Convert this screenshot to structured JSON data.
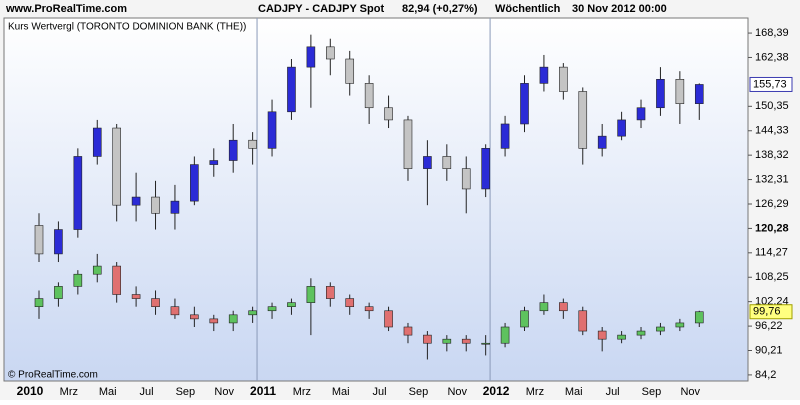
{
  "header": {
    "site": "www.ProRealTime.com",
    "instrument": "CADJPY - CADJPY Spot",
    "quote": "82,94 (+0,27%)",
    "period": "Wöchentlich",
    "date": "30 Nov 2012 00:00"
  },
  "chart_data": {
    "type": "candlestick",
    "legend": "Kurs Wertvergl (TORONTO DOMINION BANK (THE))",
    "copyright": "© ProRealTime.com",
    "categories": [
      "2010",
      null,
      "Mrz",
      null,
      "Mai",
      null,
      "Jul",
      null,
      "Sep",
      null,
      "Nov",
      null,
      "2011",
      null,
      "Mrz",
      null,
      "Mai",
      null,
      "Jul",
      null,
      "Sep",
      null,
      "Nov",
      null,
      "2012",
      null,
      "Mrz",
      null,
      "Mai",
      null,
      "Jul",
      null,
      "Sep",
      null,
      "Nov"
    ],
    "series": [
      {
        "up_color": "#2b2bd6",
        "down_color": "#c4c4c4",
        "open": [
          121,
          114,
          120,
          138,
          145,
          126,
          128,
          124,
          127,
          136,
          137,
          142,
          140,
          149,
          160,
          165,
          162,
          156,
          150,
          147,
          135,
          138,
          135,
          130,
          140,
          146,
          156,
          160,
          154,
          140,
          143,
          147,
          150,
          157,
          151
        ],
        "high": [
          124,
          122,
          140,
          147,
          146,
          134,
          132,
          131,
          138,
          140,
          146,
          144,
          152,
          162,
          168,
          167,
          164,
          158,
          153,
          148,
          142,
          141,
          138,
          141,
          148,
          158,
          163,
          161,
          155,
          146,
          149,
          152,
          160,
          159,
          156
        ],
        "low": [
          112,
          112,
          118,
          136,
          122,
          122,
          120,
          120,
          126,
          133,
          134,
          136,
          138,
          147,
          150,
          158,
          153,
          146,
          145,
          132,
          126,
          132,
          124,
          128,
          138,
          144,
          154,
          152,
          136,
          138,
          142,
          145,
          148,
          146,
          147
        ],
        "close": [
          114,
          120,
          138,
          145,
          126,
          128,
          124,
          127,
          136,
          137,
          142,
          140,
          149,
          160,
          165,
          162,
          156,
          150,
          147,
          135,
          138,
          135,
          130,
          140,
          146,
          156,
          160,
          154,
          140,
          143,
          147,
          150,
          157,
          151,
          155.73
        ],
        "last": {
          "value": 155.73,
          "label": "155,73"
        },
        "last_fill": "#ffffff",
        "last_border": "#3a3ab0"
      },
      {
        "up_color": "#5ec25e",
        "down_color": "#e07070",
        "open": [
          101,
          103,
          106,
          109,
          111,
          104,
          103,
          101,
          99,
          98,
          97,
          99,
          100,
          101,
          102,
          106,
          103,
          101,
          100,
          96,
          94,
          92,
          93,
          92,
          92,
          96,
          100,
          102,
          100,
          95,
          93,
          94,
          95,
          96,
          97
        ],
        "high": [
          105,
          107,
          110,
          114,
          112,
          106,
          105,
          103,
          101,
          99,
          100,
          101,
          102,
          103,
          108,
          107,
          104,
          102,
          101,
          97,
          95,
          94,
          94,
          94,
          97,
          101,
          104,
          103,
          101,
          96,
          95,
          96,
          97,
          98,
          100
        ],
        "low": [
          98,
          101,
          104,
          107,
          102,
          101,
          99,
          98,
          96,
          95,
          95,
          97,
          98,
          99,
          94,
          101,
          99,
          98,
          95,
          92,
          88,
          90,
          90,
          89,
          91,
          95,
          99,
          98,
          94,
          90,
          92,
          93,
          94,
          95,
          96
        ],
        "close": [
          103,
          106,
          109,
          111,
          104,
          103,
          101,
          99,
          98,
          97,
          99,
          100,
          101,
          102,
          106,
          103,
          101,
          100,
          96,
          94,
          92,
          93,
          92,
          92,
          96,
          100,
          102,
          100,
          95,
          93,
          94,
          95,
          96,
          97,
          99.76
        ],
        "last": {
          "value": 99.76,
          "label": "99,76"
        },
        "last_fill": "#ffff80",
        "last_border": "#a0a000"
      }
    ],
    "ylim": [
      82.7,
      172.1
    ],
    "yticks": [
      {
        "value": 84.2,
        "label": "84,2"
      },
      {
        "value": 90.21,
        "label": "90,21"
      },
      {
        "value": 96.22,
        "label": "96,22"
      },
      {
        "value": 102.24,
        "label": "102,24"
      },
      {
        "value": 108.25,
        "label": "108,25"
      },
      {
        "value": 114.27,
        "label": "114,27"
      },
      {
        "value": 120.28,
        "label": "120,28"
      },
      {
        "value": 126.29,
        "label": "126,29"
      },
      {
        "value": 132.31,
        "label": "132,31"
      },
      {
        "value": 138.32,
        "label": "138,32"
      },
      {
        "value": 144.33,
        "label": "144,33"
      },
      {
        "value": 150.35,
        "label": "150,35"
      },
      {
        "value": 162.38,
        "label": "162,38"
      },
      {
        "value": 168.39,
        "label": "168,39"
      }
    ],
    "y_axis_side": "right"
  }
}
